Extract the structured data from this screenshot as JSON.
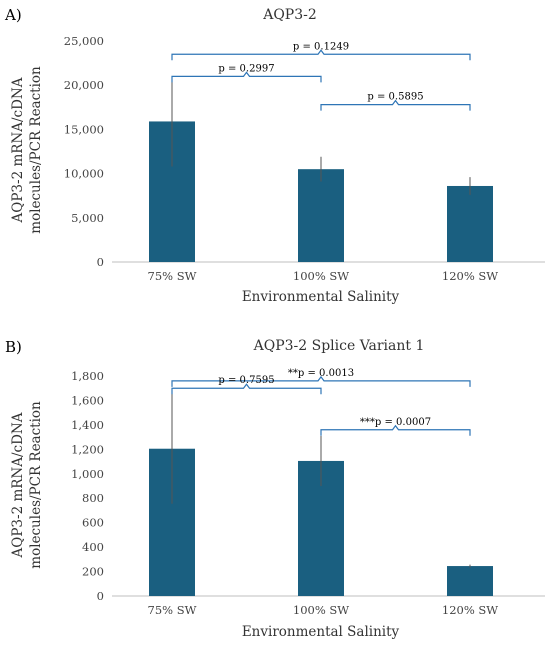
{
  "chart_data": [
    {
      "type": "bar",
      "panel": "A)",
      "title": "AQP3-2",
      "xlabel": "Environmental Salinity",
      "ylabel_lines": [
        "AQP3-2 mRNA/cDNA",
        "molecules/PCR Reaction"
      ],
      "categories": [
        "75% SW",
        "100% SW",
        "120% SW"
      ],
      "values": [
        15900,
        10500,
        8600
      ],
      "errors": [
        5100,
        1400,
        1000
      ],
      "ylim": [
        0,
        25000
      ],
      "yticks": [
        0,
        5000,
        10000,
        15000,
        20000,
        25000
      ],
      "ytick_labels": [
        "0",
        "5,000",
        "10,000",
        "15,000",
        "20,000",
        "25,000"
      ],
      "bar_color": "#1a5f80",
      "bracket_color": "#2e75b6",
      "grid": false,
      "annotations": [
        {
          "from": 0,
          "to": 2,
          "level": 23500,
          "label": "p = 0.1249"
        },
        {
          "from": 0,
          "to": 1,
          "level": 21000,
          "label": "p = 0.2997"
        },
        {
          "from": 1,
          "to": 2,
          "level": 17800,
          "label": "p = 0.5895"
        }
      ]
    },
    {
      "type": "bar",
      "panel": "B)",
      "title": "AQP3-2 Splice Variant 1",
      "xlabel": "Environmental Salinity",
      "ylabel_lines": [
        "AQP3-2 mRNA/cDNA",
        "molecules/PCR Reaction"
      ],
      "categories": [
        "75% SW",
        "100% SW",
        "120% SW"
      ],
      "values": [
        1205,
        1105,
        245
      ],
      "errors": [
        450,
        205,
        12
      ],
      "ylim": [
        0,
        1800
      ],
      "yticks": [
        0,
        200,
        400,
        600,
        800,
        1000,
        1200,
        1400,
        1600,
        1800
      ],
      "ytick_labels": [
        "0",
        "200",
        "400",
        "600",
        "800",
        "1,000",
        "1,200",
        "1,400",
        "1,600",
        "1,800"
      ],
      "bar_color": "#1a5f80",
      "bracket_color": "#2e75b6",
      "grid": false,
      "annotations": [
        {
          "from": 0,
          "to": 2,
          "level": 1760,
          "label": "**p = 0.0013"
        },
        {
          "from": 0,
          "to": 1,
          "level": 1700,
          "label": "p = 0.7595"
        },
        {
          "from": 1,
          "to": 2,
          "level": 1360,
          "label": "***p = 0.0007"
        }
      ]
    }
  ]
}
